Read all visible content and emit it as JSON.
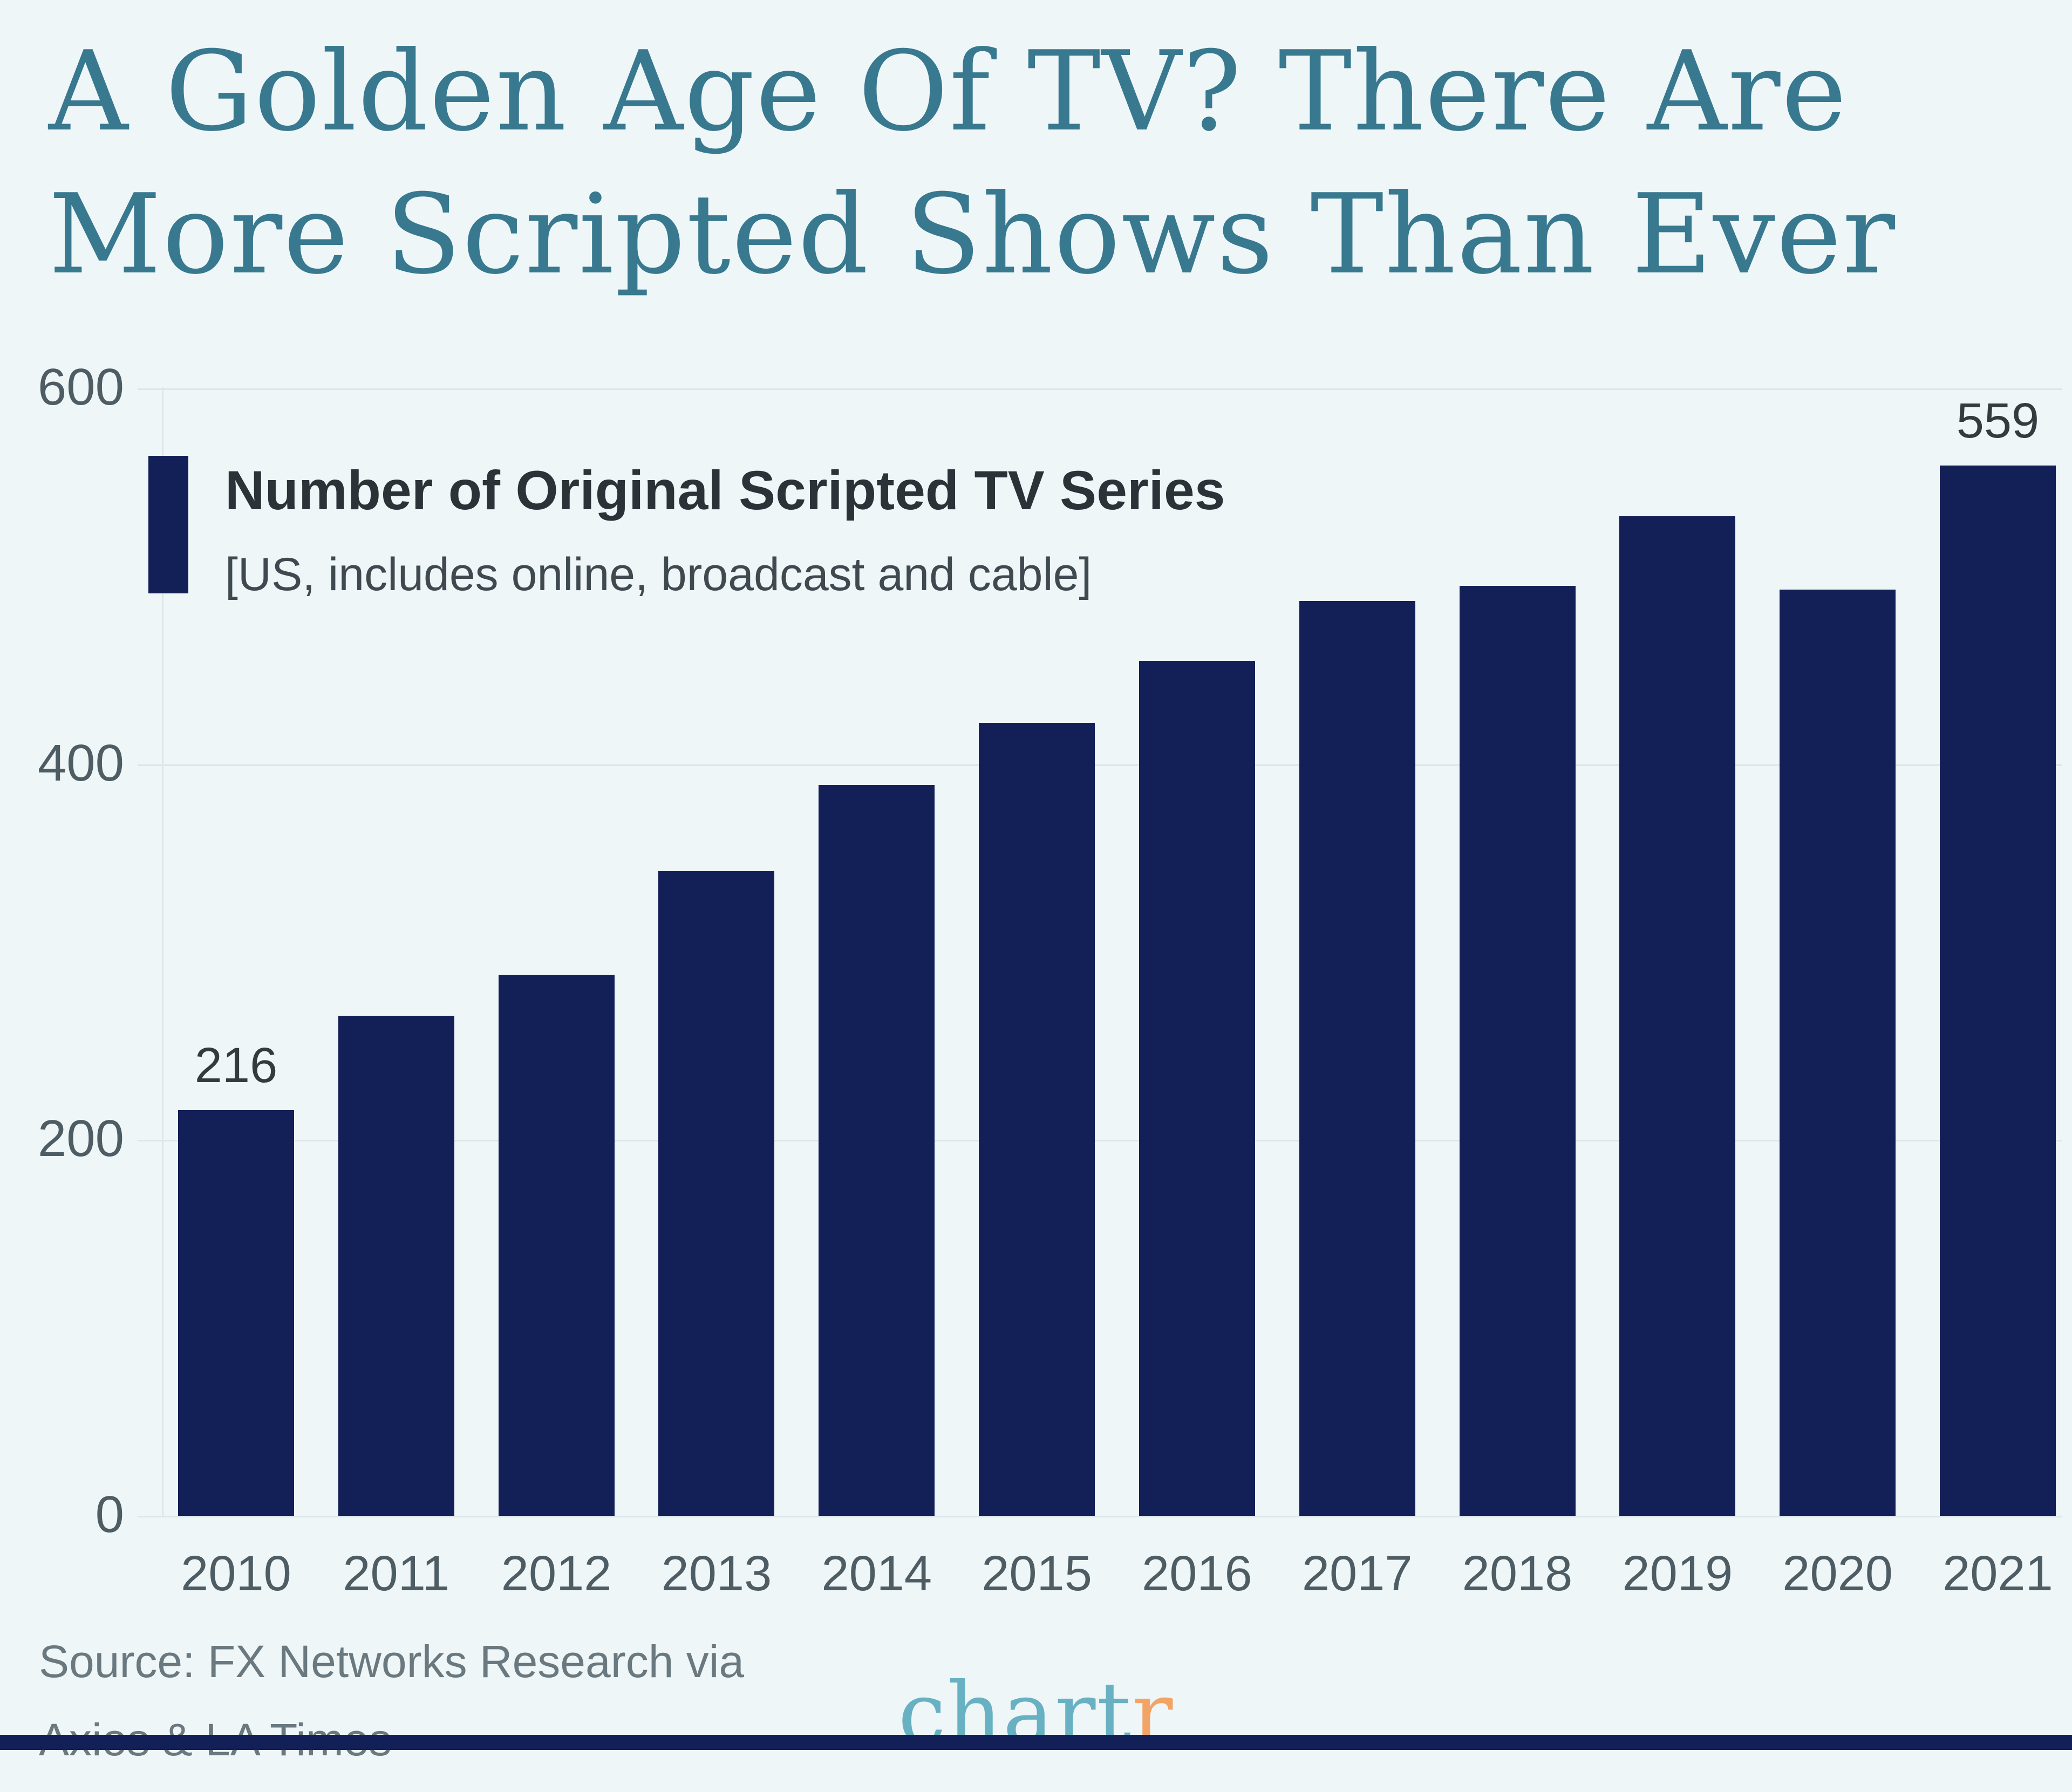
{
  "title": {
    "line1": "A Golden Age Of TV? There Are",
    "line2": "More Scripted Shows Than Ever"
  },
  "legend": {
    "label": "Number of Original Scripted TV Series",
    "sublabel": "[US, includes online, broadcast and cable]"
  },
  "source": {
    "line1": "Source: FX Networks Research via",
    "line2": "Axios & LA Times"
  },
  "logo": {
    "teal": "chart",
    "orange": "r"
  },
  "colors": {
    "background": "#eef6f8",
    "bar": "#131f57",
    "title": "#38798f",
    "grid": "#dde6e9",
    "axis_text": "#4e5c64",
    "value_text": "#333b3f",
    "legend_text": "#2b3338",
    "legend_subtext": "#3f4a50",
    "source_text": "#6a797f",
    "logo_teal": "#68b1c2",
    "logo_orange": "#f2a466"
  },
  "chart_data": {
    "type": "bar",
    "title": "Number of Original Scripted TV Series",
    "subtitle": "[US, includes online, broadcast and cable]",
    "categories": [
      "2010",
      "2011",
      "2012",
      "2013",
      "2014",
      "2015",
      "2016",
      "2017",
      "2018",
      "2019",
      "2020",
      "2021"
    ],
    "values": [
      216,
      266,
      288,
      343,
      389,
      422,
      455,
      487,
      495,
      532,
      493,
      559
    ],
    "ylim": [
      0,
      600
    ],
    "yticks": [
      600,
      400,
      200,
      0
    ],
    "data_labels": [
      {
        "category": "2010",
        "value": 216
      },
      {
        "category": "2021",
        "value": 559
      }
    ],
    "grid": "horizontal",
    "legend_position": "top-left",
    "xlabel": "",
    "ylabel": ""
  }
}
